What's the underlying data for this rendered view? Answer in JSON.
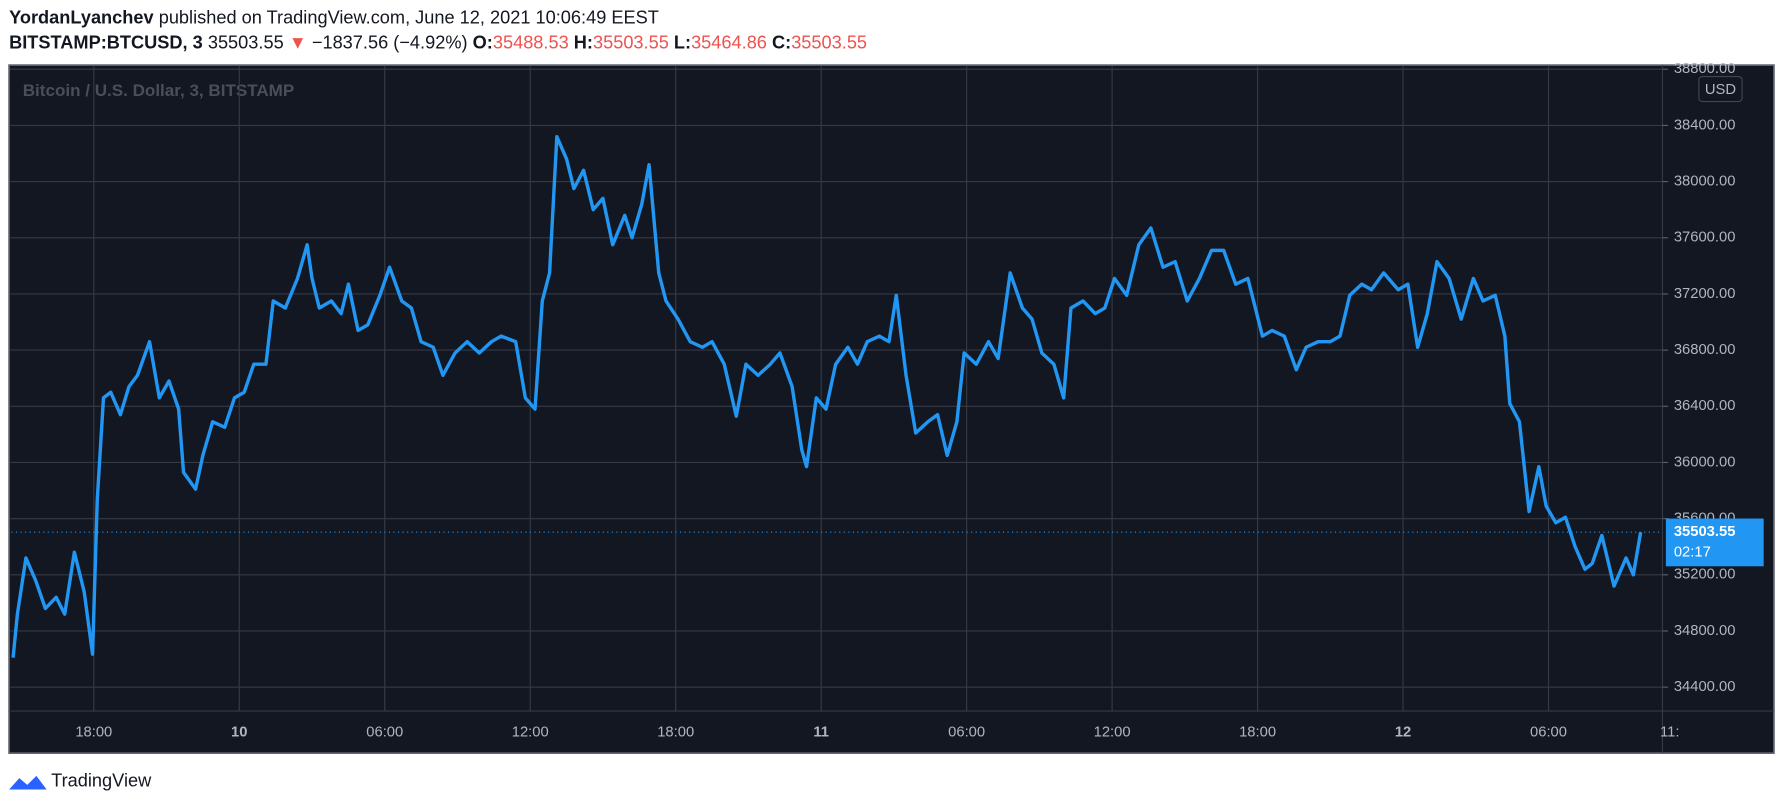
{
  "header": {
    "author": "YordanLyanchev",
    "published": "published on TradingView.com, June 12, 2021 10:06:49 EEST",
    "symbol": "BITSTAMP:BTCUSD, 3",
    "price": "35503.55",
    "arrow": "▼",
    "change": "−1837.56 (−4.92%)",
    "o_label": "O:",
    "o": "35488.53",
    "h_label": "H:",
    "h": "35503.55",
    "l_label": "L:",
    "l": "35464.86",
    "c_label": "C:",
    "c": "35503.55"
  },
  "chart_data": {
    "type": "line",
    "watermark": "Bitcoin / U.S. Dollar, 3, BITSTAMP",
    "currency": "USD",
    "countdown": "02:17",
    "color": "#2196f3",
    "x": [
      14.67,
      14.85,
      15.2,
      15.6,
      16.0,
      16.45,
      16.8,
      17.2,
      17.6,
      17.95,
      18.14,
      18.4,
      18.7,
      19.1,
      19.45,
      19.8,
      20.3,
      20.7,
      21.1,
      21.5,
      21.7,
      22.2,
      22.5,
      22.9,
      23.4,
      23.8,
      24.2,
      24.6,
      25.1,
      25.4,
      25.9,
      26.4,
      26.8,
      27.0,
      27.3,
      27.8,
      28.2,
      28.5,
      28.9,
      29.3,
      29.8,
      30.2,
      30.7,
      31.1,
      31.5,
      32.0,
      32.4,
      32.9,
      33.4,
      33.9,
      34.4,
      34.8,
      35.4,
      35.8,
      36.2,
      36.5,
      36.8,
      37.1,
      37.5,
      37.8,
      38.2,
      38.6,
      39.0,
      39.4,
      39.9,
      40.2,
      40.6,
      40.9,
      41.3,
      41.6,
      42.1,
      42.6,
      43.1,
      43.5,
      44.0,
      44.5,
      44.9,
      45.4,
      45.9,
      46.3,
      46.8,
      47.2,
      47.4,
      47.8,
      48.2,
      48.6,
      49.1,
      49.5,
      49.9,
      50.4,
      50.8,
      51.1,
      51.5,
      51.9,
      52.4,
      52.8,
      53.2,
      53.6,
      53.9,
      54.4,
      54.9,
      55.3,
      55.8,
      56.3,
      56.7,
      57.1,
      57.6,
      58.0,
      58.3,
      58.8,
      59.3,
      59.7,
      60.1,
      60.6,
      61.1,
      61.6,
      62.1,
      62.6,
      63.1,
      63.6,
      64.1,
      64.6,
      65.1,
      65.6,
      66.2,
      66.6,
      67.1,
      67.6,
      68.0,
      68.5,
      69.0,
      69.4,
      69.8,
      70.3,
      70.7,
      71.2,
      71.8,
      72.2,
      72.6,
      73.0,
      73.4,
      73.9,
      74.4,
      74.9,
      75.3,
      75.8,
      76.2,
      76.4,
      76.8,
      77.2,
      77.6,
      77.9,
      78.3,
      78.7,
      79.1,
      79.5,
      79.8,
      80.2,
      80.7,
      81.2,
      81.5,
      81.8
    ],
    "values": [
      34610,
      34920,
      35320,
      35160,
      34960,
      35040,
      34920,
      35360,
      35080,
      34635,
      35730,
      36460,
      36500,
      36340,
      36540,
      36620,
      36860,
      36460,
      36580,
      36380,
      35930,
      35810,
      36050,
      36290,
      36250,
      36460,
      36500,
      36700,
      36700,
      37150,
      37100,
      37310,
      37550,
      37310,
      37100,
      37150,
      37060,
      37270,
      36940,
      36980,
      37190,
      37390,
      37150,
      37100,
      36860,
      36820,
      36620,
      36780,
      36860,
      36780,
      36860,
      36900,
      36860,
      36460,
      36380,
      37150,
      37350,
      38320,
      38160,
      37950,
      38080,
      37800,
      37880,
      37550,
      37760,
      37600,
      37840,
      38120,
      37350,
      37150,
      37020,
      36860,
      36820,
      36860,
      36700,
      36330,
      36700,
      36620,
      36700,
      36780,
      36540,
      36090,
      35970,
      36460,
      36380,
      36700,
      36820,
      36700,
      36860,
      36900,
      36860,
      37190,
      36620,
      36210,
      36290,
      36340,
      36050,
      36290,
      36780,
      36700,
      36860,
      36740,
      37350,
      37100,
      37020,
      36780,
      36700,
      36460,
      37100,
      37150,
      37060,
      37100,
      37310,
      37190,
      37550,
      37670,
      37390,
      37430,
      37150,
      37310,
      37510,
      37510,
      37270,
      37310,
      36900,
      36940,
      36900,
      36660,
      36820,
      36860,
      36860,
      36900,
      37190,
      37270,
      37230,
      37350,
      37230,
      37270,
      36820,
      37060,
      37430,
      37310,
      37020,
      37310,
      37150,
      37190,
      36900,
      36420,
      36290,
      35650,
      35970,
      35690,
      35570,
      35610,
      35400,
      35240,
      35280,
      35480,
      35120,
      35320,
      35200,
      35503.55
    ],
    "xlim": [
      14.6,
      82.7
    ],
    "ylim": [
      34230,
      38805
    ],
    "xticks": [
      {
        "value": 18,
        "label": "18:00"
      },
      {
        "value": 24,
        "label": "10"
      },
      {
        "value": 30,
        "label": "06:00"
      },
      {
        "value": 36,
        "label": "12:00"
      },
      {
        "value": 42,
        "label": "18:00"
      },
      {
        "value": 48,
        "label": "11"
      },
      {
        "value": 54,
        "label": "06:00"
      },
      {
        "value": 60,
        "label": "12:00"
      },
      {
        "value": 66,
        "label": "18:00"
      },
      {
        "value": 72,
        "label": "12"
      },
      {
        "value": 78,
        "label": "06:00"
      },
      {
        "value": 83,
        "label": "11:"
      }
    ],
    "yticks": [
      {
        "value": 34400,
        "label": "34400.00"
      },
      {
        "value": 34800,
        "label": "34800.00"
      },
      {
        "value": 35200,
        "label": "35200.00"
      },
      {
        "value": 35600,
        "label": "35600.00"
      },
      {
        "value": 36000,
        "label": "36000.00"
      },
      {
        "value": 36400,
        "label": "36400.00"
      },
      {
        "value": 36800,
        "label": "36800.00"
      },
      {
        "value": 37200,
        "label": "37200.00"
      },
      {
        "value": 37600,
        "label": "37600.00"
      },
      {
        "value": 38000,
        "label": "38000.00"
      },
      {
        "value": 38400,
        "label": "38400.00"
      },
      {
        "value": 38800,
        "label": "38800.00"
      }
    ],
    "grid": true
  },
  "footer": {
    "brand": "TradingView"
  }
}
